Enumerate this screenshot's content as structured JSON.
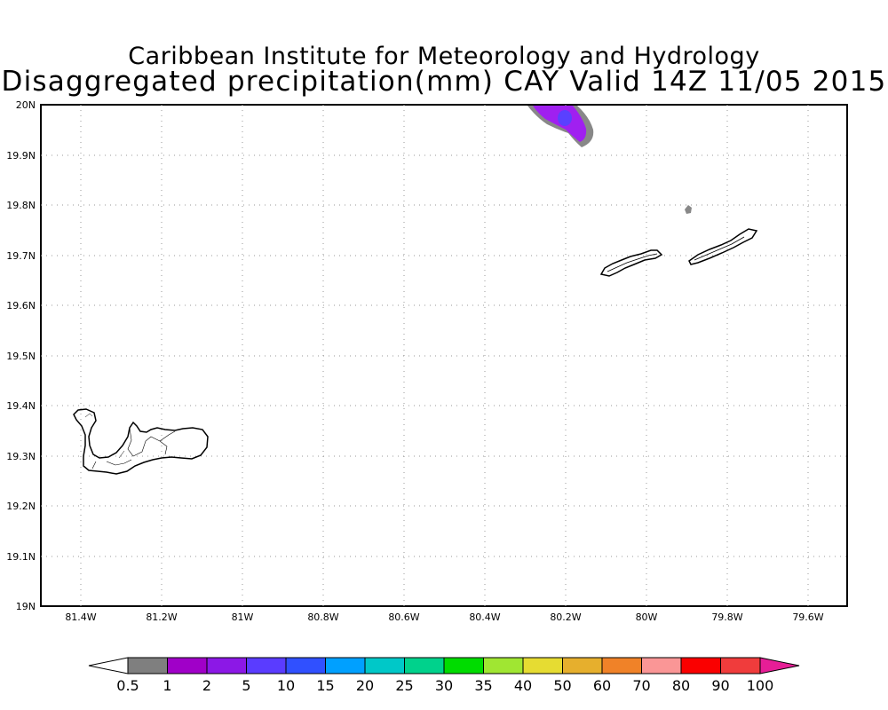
{
  "header": {
    "line1": "Caribbean Institute for Meteorology and Hydrology",
    "line2": "Disaggregated precipitation(mm) CAY Valid 14Z 11/05 2015"
  },
  "map": {
    "lat_ticks": [
      "20N",
      "19.9N",
      "19.8N",
      "19.7N",
      "19.6N",
      "19.5N",
      "19.4N",
      "19.3N",
      "19.2N",
      "19.1N",
      "19N"
    ],
    "lon_ticks": [
      "81.4W",
      "81.2W",
      "81W",
      "80.8W",
      "80.6W",
      "80.4W",
      "80.2W",
      "80W",
      "79.8W",
      "79.6W"
    ],
    "islands": [
      "grand-cayman",
      "little-cayman",
      "cayman-brac"
    ],
    "precip_colors": {
      "light": "#888888",
      "moderate": "#a020f0",
      "heavy": "#5a40ff"
    }
  },
  "colorbar": {
    "labels": [
      "0.5",
      "1",
      "2",
      "5",
      "10",
      "15",
      "20",
      "25",
      "30",
      "35",
      "40",
      "50",
      "60",
      "70",
      "80",
      "90",
      "100"
    ],
    "colors": [
      "#ffffff",
      "#7f7f7f",
      "#a000c8",
      "#8c18e6",
      "#5a3cff",
      "#3050ff",
      "#00a0ff",
      "#00c8c8",
      "#00d28c",
      "#00dc00",
      "#a0e632",
      "#e6dc32",
      "#e6af2d",
      "#f08228",
      "#fa9696",
      "#fa0000",
      "#f03c3c",
      "#e61e96"
    ]
  }
}
